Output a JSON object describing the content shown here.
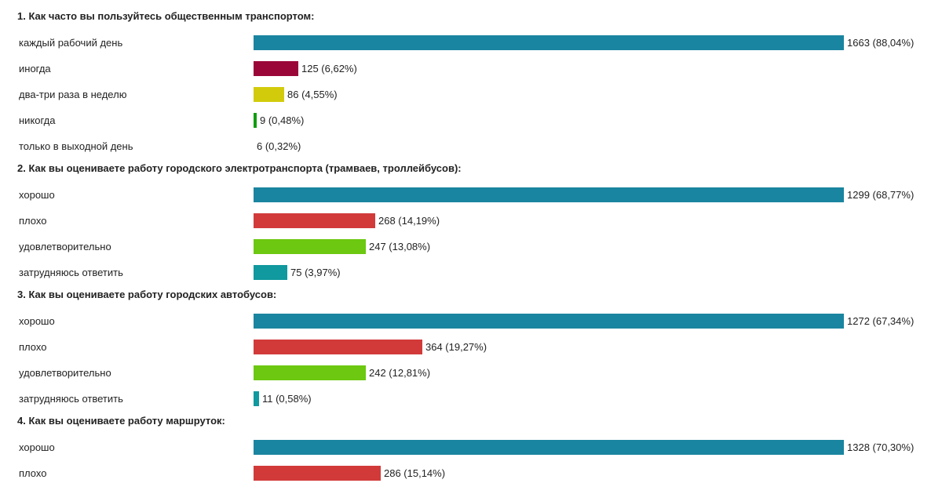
{
  "chart_data": {
    "type": "bar",
    "orientation": "horizontal",
    "value_format": "count (percent)",
    "questions": [
      {
        "title": "1. Как часто вы пользуйтесь общественным транспортом:",
        "options": [
          {
            "label": "каждый рабочий день",
            "count": 1663,
            "percent": 88.04,
            "value_text": "1663 (88,04%)",
            "color": "#1a85a0"
          },
          {
            "label": "иногда",
            "count": 125,
            "percent": 6.62,
            "value_text": "125 (6,62%)",
            "color": "#9a0638"
          },
          {
            "label": "два-три раза в неделю",
            "count": 86,
            "percent": 4.55,
            "value_text": "86 (4,55%)",
            "color": "#d2cb0c"
          },
          {
            "label": "никогда",
            "count": 9,
            "percent": 0.48,
            "value_text": "9 (0,48%)",
            "color": "#109e10"
          },
          {
            "label": "только в выходной день",
            "count": 6,
            "percent": 0.32,
            "value_text": "6 (0,32%)",
            "color": "#c0c0c0"
          }
        ]
      },
      {
        "title": "2. Как вы оцениваете работу городского электротранспорта (трамваев, троллейбусов):",
        "options": [
          {
            "label": "хорошо",
            "count": 1299,
            "percent": 68.77,
            "value_text": "1299 (68,77%)",
            "color": "#1a85a0"
          },
          {
            "label": "плохо",
            "count": 268,
            "percent": 14.19,
            "value_text": "268 (14,19%)",
            "color": "#d23a3a"
          },
          {
            "label": "удовлетворительно",
            "count": 247,
            "percent": 13.08,
            "value_text": "247 (13,08%)",
            "color": "#6cc810"
          },
          {
            "label": "затрудняюсь ответить",
            "count": 75,
            "percent": 3.97,
            "value_text": "75 (3,97%)",
            "color": "#10999e"
          }
        ]
      },
      {
        "title": "3. Как вы оцениваете работу городских автобусов:",
        "options": [
          {
            "label": "хорошо",
            "count": 1272,
            "percent": 67.34,
            "value_text": "1272 (67,34%)",
            "color": "#1a85a0"
          },
          {
            "label": "плохо",
            "count": 364,
            "percent": 19.27,
            "value_text": "364 (19,27%)",
            "color": "#d23a3a"
          },
          {
            "label": "удовлетворительно",
            "count": 242,
            "percent": 12.81,
            "value_text": "242 (12,81%)",
            "color": "#6cc810"
          },
          {
            "label": "затрудняюсь ответить",
            "count": 11,
            "percent": 0.58,
            "value_text": "11 (0,58%)",
            "color": "#10999e"
          }
        ]
      },
      {
        "title": "4. Как вы оцениваете работу маршруток:",
        "options": [
          {
            "label": "хорошо",
            "count": 1328,
            "percent": 70.3,
            "value_text": "1328 (70,30%)",
            "color": "#1a85a0"
          },
          {
            "label": "плохо",
            "count": 286,
            "percent": 15.14,
            "value_text": "286 (15,14%)",
            "color": "#d23a3a"
          }
        ]
      }
    ]
  }
}
